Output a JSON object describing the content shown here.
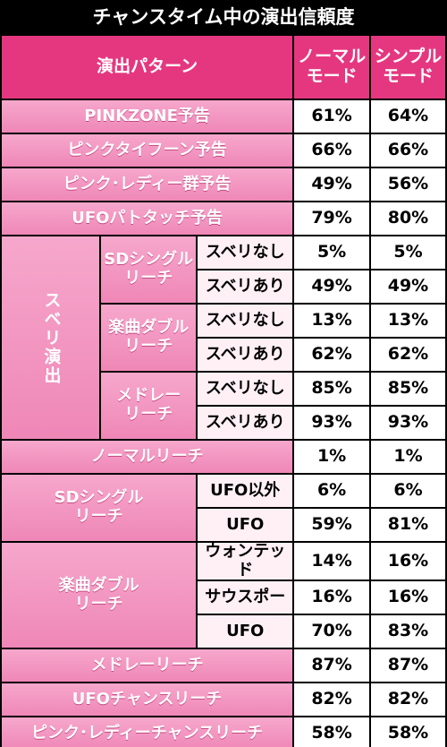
{
  "title": "チャンスタイム中の演出信頼度",
  "header": {
    "pattern": "演出パターン",
    "normal": "ノーマル\nモード",
    "simple": "シンプル\nモード"
  },
  "rows": {
    "r1": {
      "label": "PINKZONE予告",
      "normal": "61%",
      "simple": "64%"
    },
    "r2": {
      "label": "ピンクタイフーン予告",
      "normal": "66%",
      "simple": "66%"
    },
    "r3": {
      "label": "ピンク･レディー群予告",
      "normal": "49%",
      "simple": "56%"
    },
    "r4": {
      "label": "UFOパトタッチ予告",
      "normal": "79%",
      "simple": "80%"
    },
    "suberi_group": "スベリ演出",
    "sd_single": "SDシングル\nリーチ",
    "gakkyoku": "楽曲ダブル\nリーチ",
    "medley": "メドレー\nリーチ",
    "s1": {
      "label": "スベリなし",
      "normal": "5%",
      "simple": "5%"
    },
    "s2": {
      "label": "スベリあり",
      "normal": "49%",
      "simple": "49%"
    },
    "s3": {
      "label": "スベリなし",
      "normal": "13%",
      "simple": "13%"
    },
    "s4": {
      "label": "スベリあり",
      "normal": "62%",
      "simple": "62%"
    },
    "s5": {
      "label": "スベリなし",
      "normal": "85%",
      "simple": "85%"
    },
    "s6": {
      "label": "スベリあり",
      "normal": "93%",
      "simple": "93%"
    },
    "normal_reach": {
      "label": "ノーマルリーチ",
      "normal": "1%",
      "simple": "1%"
    },
    "sd2": "SDシングル\nリーチ",
    "sd2a": {
      "label": "UFO以外",
      "normal": "6%",
      "simple": "6%"
    },
    "sd2b": {
      "label": "UFO",
      "normal": "59%",
      "simple": "81%"
    },
    "gk2": "楽曲ダブル\nリーチ",
    "gk2a": {
      "label": "ウォンテッド",
      "normal": "14%",
      "simple": "16%"
    },
    "gk2b": {
      "label": "サウスポー",
      "normal": "16%",
      "simple": "16%"
    },
    "gk2c": {
      "label": "UFO",
      "normal": "70%",
      "simple": "83%"
    },
    "medley_reach": {
      "label": "メドレーリーチ",
      "normal": "87%",
      "simple": "87%"
    },
    "ufo_chance": {
      "label": "UFOチャンスリーチ",
      "normal": "82%",
      "simple": "82%"
    },
    "pink_chance": {
      "label": "ピンク･レディーチャンスリーチ",
      "normal": "58%",
      "simple": "58%"
    }
  }
}
